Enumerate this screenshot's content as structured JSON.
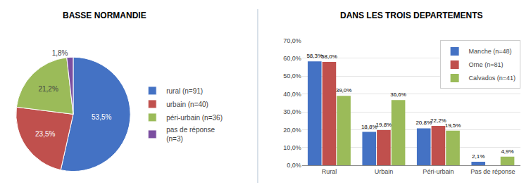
{
  "chart_data": [
    {
      "type": "pie",
      "title": "BASSE NORMANDIE",
      "categories": [
        "rural (n=91)",
        "urbain (n=40)",
        "péri-urbain (n=36)",
        "pas de réponse\n(n=3)"
      ],
      "values": [
        53.5,
        23.5,
        21.2,
        1.8
      ],
      "value_labels": [
        "53,5%",
        "23,5%",
        "21,2%",
        "1,8%"
      ],
      "colors": [
        "#4472C4",
        "#C0504D",
        "#9BBB59",
        "#7B4EA0"
      ],
      "data_labels": true,
      "legend": "right"
    },
    {
      "type": "bar",
      "title": "DANS LES TROIS DEPARTEMENTS",
      "categories": [
        "Rural",
        "Urbain",
        "Péri-urbain",
        "Pas de réponse"
      ],
      "series": [
        {
          "name": "Manche (n=48)",
          "color": "#4472C4",
          "values": [
            58.3,
            18.8,
            20.8,
            2.1
          ],
          "value_labels": [
            "58,3%",
            "18,8%",
            "20,8%",
            "2,1%"
          ]
        },
        {
          "name": "Orne (n=81)",
          "color": "#C0504D",
          "values": [
            58.0,
            19.8,
            22.2,
            0.0
          ],
          "value_labels": [
            "58,0%",
            "19,8%",
            "22,2%",
            null
          ]
        },
        {
          "name": "Calvados (n=41)",
          "color": "#9BBB59",
          "values": [
            39.0,
            36.6,
            19.5,
            4.9
          ],
          "value_labels": [
            "39,0%",
            "36,6%",
            "19,5%",
            "4,9%"
          ]
        }
      ],
      "ylim": [
        0,
        70
      ],
      "yticks": [
        {
          "value": 0,
          "label": "0,0%"
        },
        {
          "value": 10,
          "label": "10,0%"
        },
        {
          "value": 20,
          "label": "20,0%"
        },
        {
          "value": 30,
          "label": "30,0%"
        },
        {
          "value": 40,
          "label": "40,0%"
        },
        {
          "value": 50,
          "label": "50,0%"
        },
        {
          "value": 60,
          "label": "60,0%"
        },
        {
          "value": 70,
          "label": "70,0%"
        }
      ],
      "grid": true,
      "legend": "upper right",
      "data_labels": true
    }
  ]
}
